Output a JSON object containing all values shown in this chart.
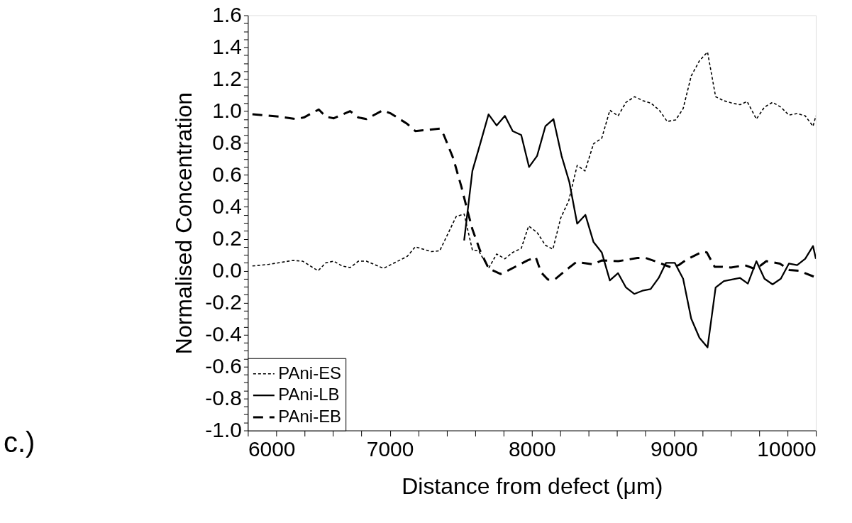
{
  "chart_data": {
    "type": "line",
    "xlabel": "Distance from defect (μm)",
    "ylabel": "Normalised Concentration",
    "annotations": [
      "c.)"
    ],
    "xlim": [
      6000,
      10000
    ],
    "xticks": [
      6000,
      {
        "value": 6200,
        "label": null
      },
      {
        "value": 6400,
        "label": null
      },
      {
        "value": 6600,
        "label": null
      },
      {
        "value": 6800,
        "label": null
      },
      7000,
      {
        "value": 7200,
        "label": null
      },
      {
        "value": 7400,
        "label": null
      },
      {
        "value": 7600,
        "label": null
      },
      {
        "value": 7800,
        "label": null
      },
      8000,
      {
        "value": 8200,
        "label": null
      },
      {
        "value": 8400,
        "label": null
      },
      {
        "value": 8600,
        "label": null
      },
      {
        "value": 8800,
        "label": null
      },
      9000,
      {
        "value": 9200,
        "label": null
      },
      {
        "value": 9400,
        "label": null
      },
      {
        "value": 9600,
        "label": null
      },
      {
        "value": 9800,
        "label": null
      },
      10000
    ],
    "ylim": [
      -1.0,
      1.6
    ],
    "yticks": [
      {
        "value": -1.0,
        "label": "-1.0"
      },
      {
        "value": -0.95,
        "label": null
      },
      {
        "value": -0.9,
        "label": null
      },
      {
        "value": -0.85,
        "label": null
      },
      {
        "value": -0.8,
        "label": "-0.8"
      },
      {
        "value": -0.75,
        "label": null
      },
      {
        "value": -0.7,
        "label": null
      },
      {
        "value": -0.65,
        "label": null
      },
      {
        "value": -0.6,
        "label": "-0.6"
      },
      {
        "value": -0.55,
        "label": null
      },
      {
        "value": -0.5,
        "label": null
      },
      {
        "value": -0.45,
        "label": null
      },
      {
        "value": -0.4,
        "label": "-0.4"
      },
      {
        "value": -0.35,
        "label": null
      },
      {
        "value": -0.3,
        "label": null
      },
      {
        "value": -0.25,
        "label": null
      },
      {
        "value": -0.2,
        "label": "-0.2"
      },
      {
        "value": -0.15,
        "label": null
      },
      {
        "value": -0.1,
        "label": null
      },
      {
        "value": -0.05,
        "label": null
      },
      {
        "value": 0.0,
        "label": "0.0"
      },
      {
        "value": 0.05,
        "label": null
      },
      {
        "value": 0.1,
        "label": null
      },
      {
        "value": 0.15,
        "label": null
      },
      {
        "value": 0.2,
        "label": "0.2"
      },
      {
        "value": 0.25,
        "label": null
      },
      {
        "value": 0.3,
        "label": null
      },
      {
        "value": 0.35,
        "label": null
      },
      {
        "value": 0.4,
        "label": "0.4"
      },
      {
        "value": 0.45,
        "label": null
      },
      {
        "value": 0.5,
        "label": null
      },
      {
        "value": 0.55,
        "label": null
      },
      {
        "value": 0.6,
        "label": "0.6"
      },
      {
        "value": 0.65,
        "label": null
      },
      {
        "value": 0.7,
        "label": null
      },
      {
        "value": 0.75,
        "label": null
      },
      {
        "value": 0.8,
        "label": "0.8"
      },
      {
        "value": 0.85,
        "label": null
      },
      {
        "value": 0.9,
        "label": null
      },
      {
        "value": 0.95,
        "label": null
      },
      {
        "value": 1.0,
        "label": "1.0"
      },
      {
        "value": 1.05,
        "label": null
      },
      {
        "value": 1.1,
        "label": null
      },
      {
        "value": 1.15,
        "label": null
      },
      {
        "value": 1.2,
        "label": "1.2"
      },
      {
        "value": 1.25,
        "label": null
      },
      {
        "value": 1.3,
        "label": null
      },
      {
        "value": 1.35,
        "label": null
      },
      {
        "value": 1.4,
        "label": "1.4"
      },
      {
        "value": 1.45,
        "label": null
      },
      {
        "value": 1.5,
        "label": null
      },
      {
        "value": 1.55,
        "label": null
      },
      {
        "value": 1.6,
        "label": "1.6"
      }
    ],
    "grid": false,
    "legend": "bottom left",
    "marker": "none",
    "series": [
      {
        "name": "PAni-ES",
        "color": "#000000",
        "line_style": "dotted",
        "x": [
          6032,
          6147,
          6319,
          6386,
          6494,
          6549,
          6605,
          6663,
          6720,
          6778,
          6835,
          6955,
          7122,
          7179,
          7292,
          7351,
          7467,
          7523,
          7581,
          7626,
          7695,
          7752,
          7810,
          7865,
          7925,
          7977,
          8037,
          8095,
          8148,
          8203,
          8260,
          8319,
          8374,
          8434,
          8492,
          8549,
          8607,
          8663,
          8723,
          8783,
          8838,
          8898,
          8953,
          9013,
          9065,
          9122,
          9180,
          9237,
          9294,
          9352,
          9409,
          9466,
          9516,
          9581,
          9638,
          9695,
          9753,
          9810,
          9868,
          9925,
          9980,
          10000
        ],
        "values": [
          0.03,
          0.04,
          0.065,
          0.06,
          0.0,
          0.05,
          0.06,
          0.03,
          0.02,
          0.06,
          0.06,
          0.015,
          0.09,
          0.15,
          0.12,
          0.125,
          0.34,
          0.355,
          0.13,
          0.125,
          0.015,
          0.105,
          0.075,
          0.115,
          0.14,
          0.28,
          0.24,
          0.16,
          0.135,
          0.33,
          0.44,
          0.66,
          0.625,
          0.795,
          0.83,
          1.005,
          0.97,
          1.055,
          1.09,
          1.065,
          1.05,
          1.005,
          0.935,
          0.945,
          1.015,
          1.22,
          1.315,
          1.37,
          1.09,
          1.065,
          1.05,
          1.04,
          1.06,
          0.95,
          1.025,
          1.055,
          1.025,
          0.975,
          0.985,
          0.97,
          0.905,
          0.97
        ]
      },
      {
        "name": "PAni-LB",
        "color": "#000000",
        "line_style": "solid",
        "x": [
          7523,
          7581,
          7636,
          7695,
          7752,
          7810,
          7865,
          7925,
          7980,
          8037,
          8095,
          8152,
          8209,
          8264,
          8319,
          8377,
          8434,
          8492,
          8549,
          8607,
          8663,
          8721,
          8778,
          8836,
          8893,
          8945,
          9006,
          9065,
          9122,
          9180,
          9237,
          9294,
          9352,
          9409,
          9466,
          9521,
          9581,
          9638,
          9695,
          9753,
          9810,
          9868,
          9925,
          9980,
          10000
        ],
        "values": [
          0.19,
          0.625,
          0.795,
          0.98,
          0.91,
          0.97,
          0.875,
          0.85,
          0.65,
          0.72,
          0.905,
          0.95,
          0.72,
          0.555,
          0.295,
          0.35,
          0.18,
          0.115,
          -0.06,
          -0.015,
          -0.105,
          -0.145,
          -0.125,
          -0.115,
          -0.045,
          0.05,
          0.05,
          -0.05,
          -0.3,
          -0.42,
          -0.48,
          -0.105,
          -0.065,
          -0.055,
          -0.045,
          -0.08,
          0.06,
          -0.05,
          -0.085,
          -0.05,
          0.045,
          0.035,
          0.075,
          0.155,
          0.075
        ]
      },
      {
        "name": "PAni-EB",
        "color": "#000000",
        "line_style": "dashed",
        "x": [
          6032,
          6223,
          6338,
          6394,
          6499,
          6549,
          6605,
          6720,
          6778,
          6835,
          6950,
          7007,
          7122,
          7179,
          7351,
          7380,
          7446,
          7504,
          7541,
          7581,
          7636,
          7695,
          7780,
          7828,
          7970,
          8027,
          8065,
          8113,
          8160,
          8248,
          8314,
          8429,
          8494,
          8608,
          8743,
          8802,
          8868,
          8983,
          9033,
          9090,
          9202,
          9232,
          9287,
          9337,
          9402,
          9499,
          9576,
          9651,
          9746,
          9814,
          9880,
          9995
        ],
        "values": [
          0.98,
          0.965,
          0.95,
          0.96,
          1.01,
          0.965,
          0.955,
          1.0,
          0.96,
          0.95,
          1.005,
          0.985,
          0.92,
          0.875,
          0.89,
          0.85,
          0.705,
          0.525,
          0.395,
          0.26,
          0.125,
          0.015,
          -0.02,
          0.0,
          0.065,
          0.085,
          -0.01,
          -0.055,
          -0.055,
          0.01,
          0.055,
          0.04,
          0.065,
          0.06,
          0.08,
          0.08,
          0.06,
          0.02,
          0.035,
          0.07,
          0.12,
          0.115,
          0.025,
          0.025,
          0.02,
          0.035,
          0.01,
          0.06,
          0.045,
          0.005,
          0.0,
          -0.04
        ]
      }
    ]
  }
}
